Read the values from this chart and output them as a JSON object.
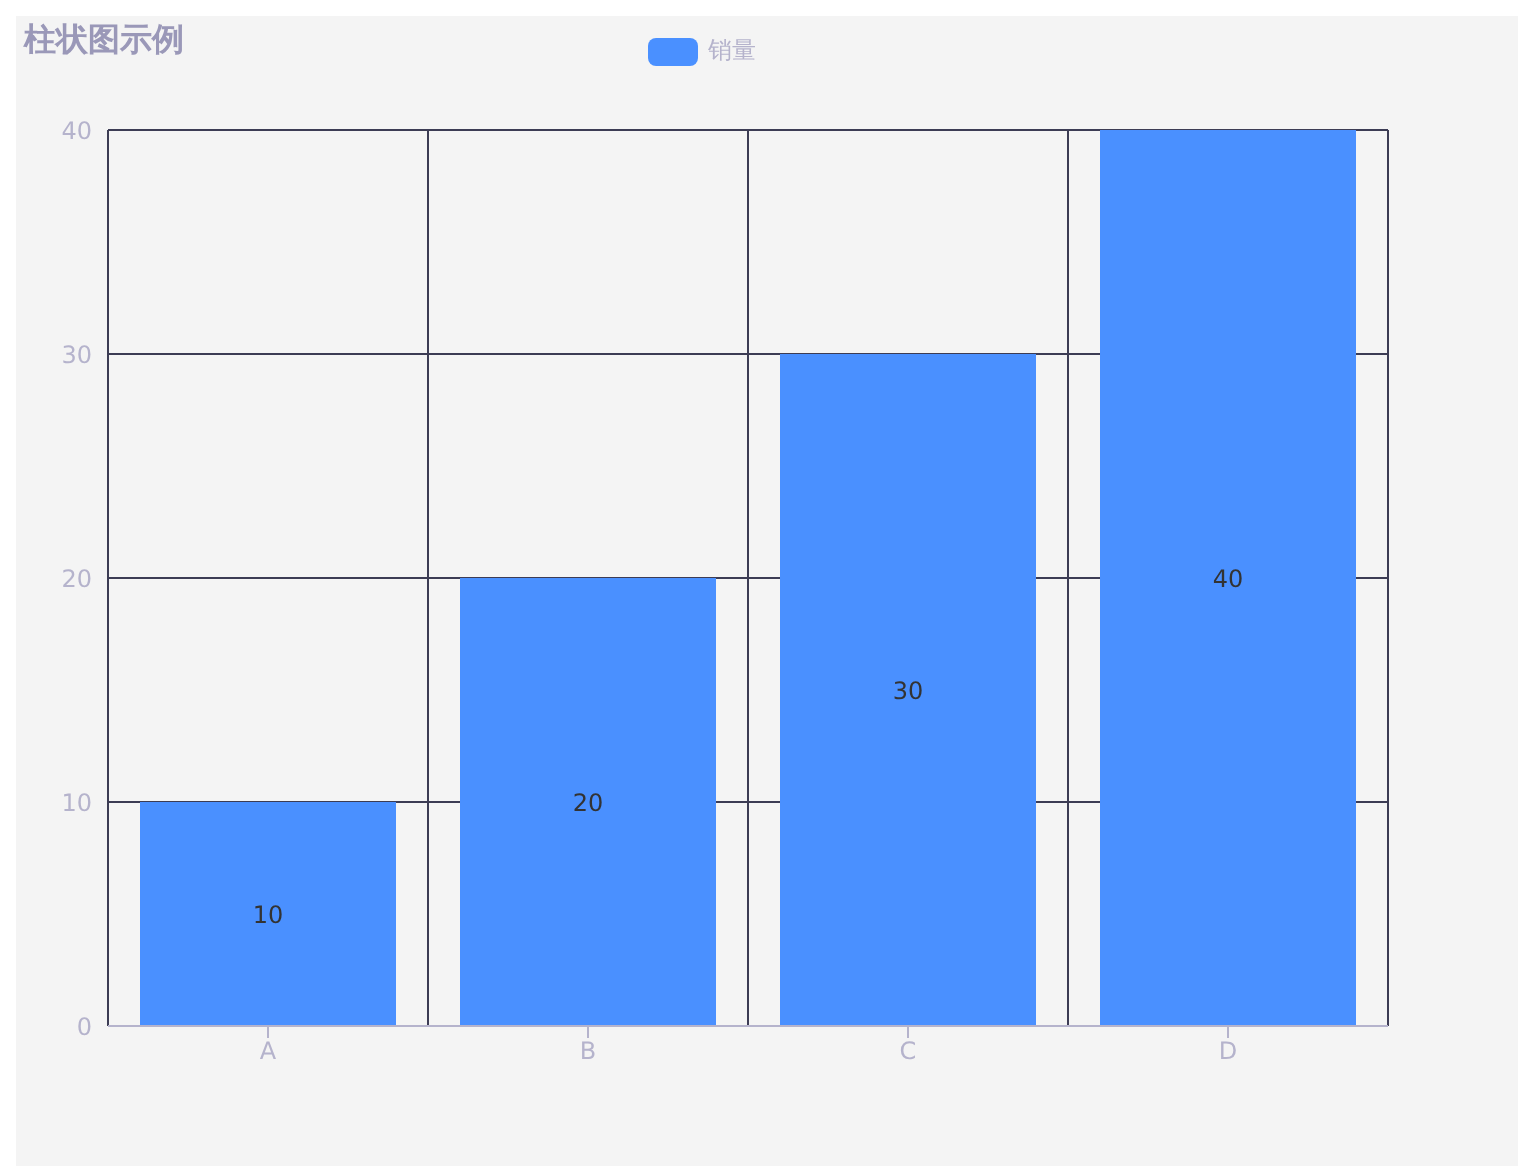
{
  "chart_data": {
    "type": "bar",
    "title": "柱状图示例",
    "categories": [
      "A",
      "B",
      "C",
      "D"
    ],
    "series": [
      {
        "name": "销量",
        "color": "#4a90ff",
        "values": [
          10,
          20,
          30,
          40
        ]
      }
    ],
    "ylim": [
      0,
      40
    ],
    "yticks": [
      0,
      10,
      20,
      30,
      40
    ],
    "grid": true,
    "legend": "top",
    "data_labels": true
  }
}
